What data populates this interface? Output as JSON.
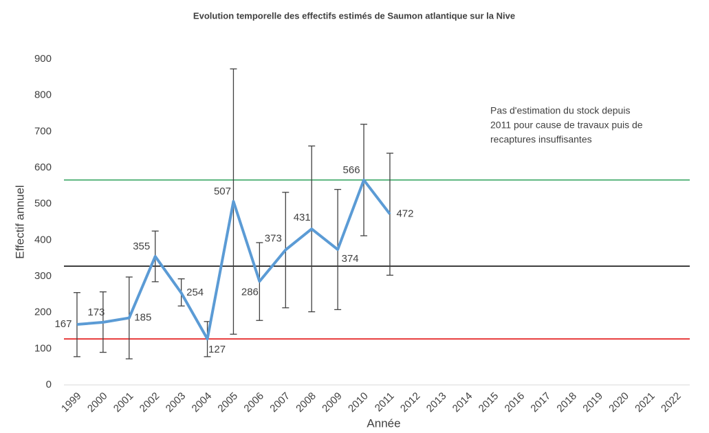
{
  "chart_data": {
    "type": "line",
    "title": "Evolution temporelle des effectifs estimés de Saumon atlantique sur la Nive",
    "x_label": "Année",
    "y_label": "Effectif annuel",
    "categories": [
      "1999",
      "2000",
      "2001",
      "2002",
      "2003",
      "2004",
      "2005",
      "2006",
      "2007",
      "2008",
      "2009",
      "2010",
      "2011",
      "2012",
      "2013",
      "2014",
      "2015",
      "2016",
      "2017",
      "2018",
      "2019",
      "2020",
      "2021",
      "2022"
    ],
    "series": [
      {
        "color": "#5b9bd5",
        "values": [
          167,
          173,
          185,
          355,
          254,
          127,
          507,
          286,
          373,
          431,
          374,
          566,
          472,
          null,
          null,
          null,
          null,
          null,
          null,
          null,
          null,
          null,
          null,
          null
        ],
        "error_low": [
          78,
          90,
          72,
          285,
          218,
          78,
          140,
          178,
          213,
          202,
          208,
          412,
          303,
          null,
          null,
          null,
          null,
          null,
          null,
          null,
          null,
          null,
          null,
          null
        ],
        "error_high": [
          255,
          257,
          298,
          425,
          293,
          175,
          873,
          393,
          532,
          660,
          540,
          720,
          640,
          null,
          null,
          null,
          null,
          null,
          null,
          null,
          null,
          null,
          null,
          null
        ]
      }
    ],
    "reference_lines": [
      {
        "value": 566,
        "color": "#2ca05a"
      },
      {
        "value": 328,
        "color": "#000000"
      },
      {
        "value": 127,
        "color": "#e00000"
      }
    ],
    "annotation": [
      "Pas d'estimation du stock depuis",
      "2011 pour cause de travaux puis de",
      "recaptures insuffisantes"
    ],
    "ylim": [
      0,
      900
    ],
    "yticks": [
      0,
      100,
      200,
      300,
      400,
      500,
      600,
      700,
      800,
      900
    ],
    "grid": false
  }
}
